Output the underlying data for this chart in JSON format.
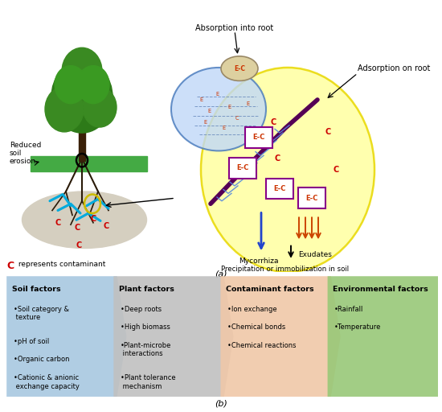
{
  "fig_width": 5.5,
  "fig_height": 5.12,
  "dpi": 100,
  "bg_color": "#ffffff",
  "panels": [
    {
      "title": "Soil factors",
      "bullets": [
        "•Soil category &\n texture",
        "•pH of soil",
        "•Organic carbon",
        "•Cationic & anionic\n exchange capacity"
      ],
      "color": "#a8c8e0"
    },
    {
      "title": "Plant factors",
      "bullets": [
        "•Deep roots",
        "•High biomass",
        "•Plant-microbe\n interactions",
        "•Plant tolerance\n mechanism"
      ],
      "color": "#c0c0c0"
    },
    {
      "title": "Contaminant factors",
      "bullets": [
        "•Ion exchange",
        "•Chemical bonds",
        "•Chemical reactions"
      ],
      "color": "#f0c8a8"
    },
    {
      "title": "Environmental factors",
      "bullets": [
        "•Rainfall",
        "•Temperature"
      ],
      "color": "#98c878"
    }
  ]
}
